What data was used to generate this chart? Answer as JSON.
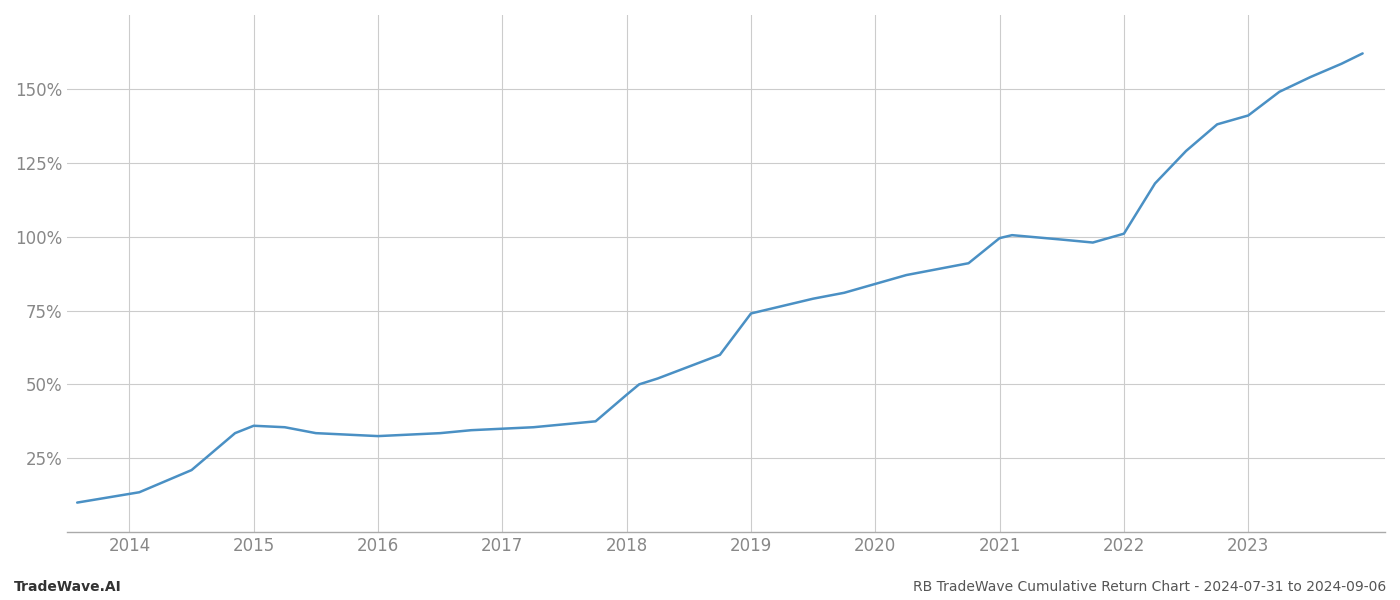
{
  "title_left": "TradeWave.AI",
  "title_right": "RB TradeWave Cumulative Return Chart - 2024-07-31 to 2024-09-06",
  "line_color": "#4a90c4",
  "background_color": "#ffffff",
  "grid_color": "#cccccc",
  "x_years": [
    2014,
    2015,
    2016,
    2017,
    2018,
    2019,
    2020,
    2021,
    2022,
    2023
  ],
  "x_data": [
    2013.58,
    2014.08,
    2014.5,
    2014.85,
    2015.0,
    2015.25,
    2015.5,
    2015.75,
    2016.0,
    2016.25,
    2016.5,
    2016.75,
    2017.0,
    2017.25,
    2017.5,
    2017.75,
    2018.0,
    2018.1,
    2018.25,
    2018.5,
    2018.75,
    2019.0,
    2019.25,
    2019.5,
    2019.75,
    2020.0,
    2020.25,
    2020.5,
    2020.75,
    2021.0,
    2021.1,
    2021.5,
    2021.75,
    2022.0,
    2022.25,
    2022.5,
    2022.75,
    2023.0,
    2023.25,
    2023.5,
    2023.75,
    2023.92
  ],
  "y_data": [
    10.0,
    13.5,
    21.0,
    33.5,
    36.0,
    35.5,
    33.5,
    33.0,
    32.5,
    33.0,
    33.5,
    34.5,
    35.0,
    35.5,
    36.5,
    37.5,
    46.5,
    50.0,
    52.0,
    56.0,
    60.0,
    74.0,
    76.5,
    79.0,
    81.0,
    84.0,
    87.0,
    89.0,
    91.0,
    99.5,
    100.5,
    99.0,
    98.0,
    101.0,
    118.0,
    129.0,
    138.0,
    141.0,
    149.0,
    154.0,
    158.5,
    162.0
  ],
  "ylim": [
    0,
    175
  ],
  "yticks": [
    25,
    50,
    75,
    100,
    125,
    150
  ],
  "xlim": [
    2013.5,
    2024.1
  ],
  "line_width": 1.8,
  "footer_fontsize": 10,
  "tick_fontsize": 12,
  "axis_color": "#aaaaaa",
  "text_color": "#888888"
}
